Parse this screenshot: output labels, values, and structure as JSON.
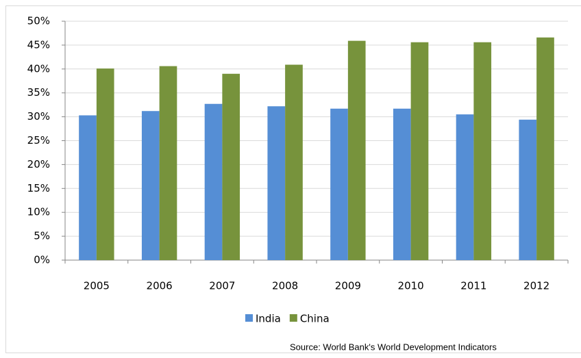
{
  "chart_data": {
    "type": "bar",
    "categories": [
      "2005",
      "2006",
      "2007",
      "2008",
      "2009",
      "2010",
      "2011",
      "2012"
    ],
    "series": [
      {
        "name": "India",
        "color": "#558ed5",
        "values": [
          30.3,
          31.2,
          32.7,
          32.2,
          31.7,
          31.7,
          30.5,
          29.4
        ]
      },
      {
        "name": "China",
        "color": "#77933c",
        "values": [
          40.1,
          40.6,
          39.0,
          40.9,
          45.9,
          45.6,
          45.6,
          46.6
        ]
      }
    ],
    "ylim": [
      0,
      50
    ],
    "yticks": [
      {
        "value": 0,
        "label": "0%"
      },
      {
        "value": 5,
        "label": "5%"
      },
      {
        "value": 10,
        "label": "10%"
      },
      {
        "value": 15,
        "label": "15%"
      },
      {
        "value": 20,
        "label": "20%"
      },
      {
        "value": 25,
        "label": "25%"
      },
      {
        "value": 30,
        "label": "30%"
      },
      {
        "value": 35,
        "label": "35%"
      },
      {
        "value": 40,
        "label": "40%"
      },
      {
        "value": 45,
        "label": "45%"
      },
      {
        "value": 50,
        "label": "50%"
      }
    ],
    "grid": true,
    "legend": "bottom",
    "source": "Source: World Bank's World Development Indicators"
  }
}
